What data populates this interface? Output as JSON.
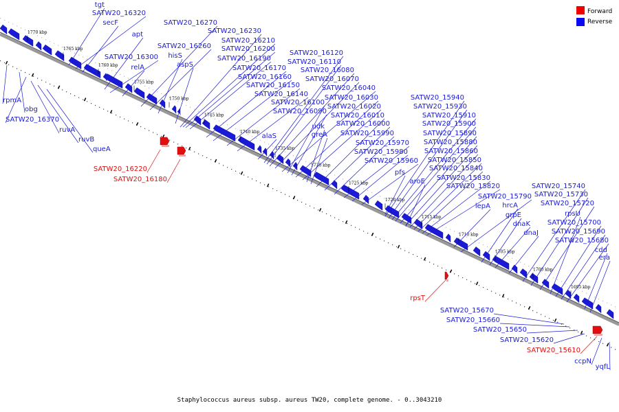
{
  "caption": "Staphylococcus aureus subsp. aureus TW20, complete genome. - 0..3043210",
  "legend": [
    {
      "label": "Forward",
      "color": "#ee0000"
    },
    {
      "label": "Reverse",
      "color": "#0a0af0"
    }
  ],
  "colors": {
    "reverse": "#1a1ad6",
    "forward": "#e01010",
    "axis": "#888888"
  },
  "ticks": [
    "1770 kbp",
    "1765 kbp",
    "1760 kbp",
    "1755 kbp",
    "1750 kbp",
    "1745 kbp",
    "1740 kbp",
    "1735 kbp",
    "1730 kbp",
    "1725 kbp",
    "1720 kbp",
    "1715 kbp",
    "1710 kbp",
    "1705 kbp",
    "1700 kbp",
    "1695 kbp"
  ],
  "labels": {
    "upper_reverse": [
      "tgt",
      "SATW20_16320",
      "secF",
      "apt",
      "SATW20_16300",
      "relA",
      "SATW20_16270",
      "SATW20_16260",
      "hisS",
      "aspS",
      "SATW20_16230",
      "SATW20_16210",
      "SATW20_16200",
      "SATW20_16190",
      "SATW20_16170",
      "SATW20_16160",
      "SATW20_16150",
      "SATW20_16140",
      "alaS",
      "SATW20_16120",
      "SATW20_16110",
      "SATW20_16080",
      "SATW20_16070",
      "SATW20_16040",
      "SATW20_16100",
      "SATW20_16090",
      "SATW20_16030",
      "SATW20_16020",
      "udk",
      "greA",
      "SATW20_16010",
      "SATW20_16000",
      "SATW20_15990",
      "SATW20_15970",
      "SATW20_15980",
      "SATW20_15960",
      "pfs",
      "SATW20_15940",
      "SATW20_15930",
      "SATW20_15910",
      "SATW20_15900",
      "SATW20_15890",
      "SATW20_15880",
      "SATW20_15860",
      "SATW20_15850",
      "SATW20_15840",
      "aroE",
      "SATW20_15830",
      "SATW20_15820",
      "lepA",
      "SATW20_15790",
      "hrcA",
      "grpE",
      "dnaK",
      "dnaJ",
      "SATW20_15740",
      "SATW20_15730",
      "SATW20_15720",
      "rpsU",
      "SATW20_15700",
      "SATW20_15690",
      "SATW20_15680",
      "cdd",
      "era"
    ],
    "lower_reverse": [
      "rpmA",
      "obg",
      "SATW20_16370",
      "ruvA",
      "ruvB",
      "queA",
      "SATW20_15670",
      "SATW20_15660",
      "SATW20_15650",
      "SATW20_15620",
      "ccpN",
      "yqfL"
    ],
    "forward": [
      "SATW20_16220",
      "SATW20_16180",
      "rpsT",
      "SATW20_15610"
    ]
  }
}
